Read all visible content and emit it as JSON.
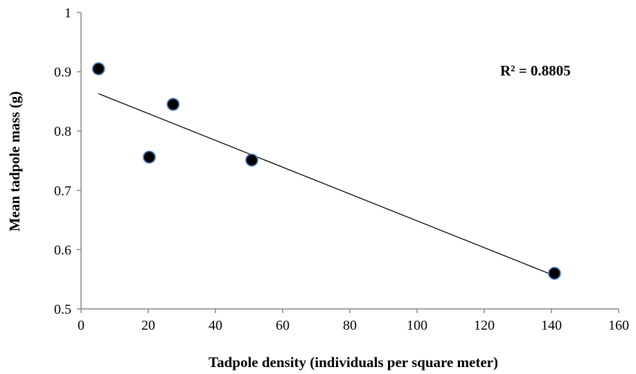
{
  "chart_data": {
    "type": "scatter",
    "xlabel": "Tadpole density (individuals per square meter)",
    "ylabel": "Mean tadpole mass (g)",
    "xlim": [
      0,
      160
    ],
    "ylim": [
      0.5,
      1.0
    ],
    "x_ticks": [
      0,
      20,
      40,
      60,
      80,
      100,
      120,
      140,
      160
    ],
    "y_ticks": [
      0.5,
      0.6,
      0.7,
      0.8,
      0.9,
      1.0
    ],
    "x_tick_labels": [
      "0",
      "20",
      "40",
      "60",
      "80",
      "100",
      "120",
      "140",
      "160"
    ],
    "y_tick_labels": [
      "0.5",
      "0.6",
      "0.7",
      "0.8",
      "0.9",
      "1"
    ],
    "grid": false,
    "legend": "none",
    "series": [
      {
        "points": [
          {
            "x": 5.2,
            "y": 0.905
          },
          {
            "x": 20.3,
            "y": 0.756
          },
          {
            "x": 27.4,
            "y": 0.845
          },
          {
            "x": 50.8,
            "y": 0.751
          },
          {
            "x": 140.9,
            "y": 0.56
          }
        ],
        "marker_fill": "#000000",
        "marker_edge": "#4f81bd"
      }
    ],
    "trendline": {
      "type": "linear",
      "x_range": [
        5.2,
        140.9
      ],
      "y_values": [
        0.863,
        0.556
      ],
      "color": "#000000"
    },
    "annotation": "R² = 0.8805"
  }
}
